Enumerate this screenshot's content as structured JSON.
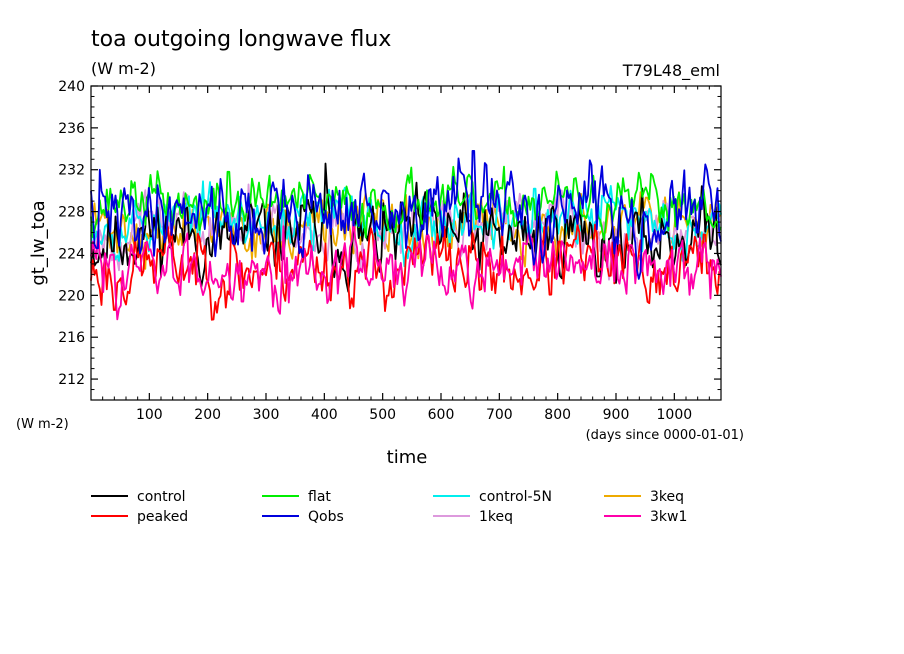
{
  "chart_data": {
    "type": "line",
    "title": "toa outgoing longwave flux",
    "subtitle": "(W m-2)",
    "run_label": "T79L48_eml",
    "ylabel": "gt_lw_toa",
    "yunit": "(W m-2)",
    "xlabel": "time",
    "xunit": "(days since 0000-01-01)",
    "xlim": [
      0,
      1080
    ],
    "ylim": [
      210,
      240
    ],
    "xticks": [
      100,
      200,
      300,
      400,
      500,
      600,
      700,
      800,
      900,
      1000
    ],
    "yticks": [
      212,
      216,
      220,
      224,
      228,
      232,
      236,
      240
    ],
    "grid": false,
    "legend_position": "bottom",
    "sample_step_days": 3,
    "series": [
      {
        "name": "control",
        "color": "#000000",
        "mean": 225.6,
        "amp": 1.7,
        "seed": 11,
        "max_point": [
          402,
          232.6
        ],
        "min_point": [
          868,
          221.8
        ]
      },
      {
        "name": "peaked",
        "color": "#ff0000",
        "mean": 222.8,
        "amp": 1.6,
        "seed": 23,
        "max_point": [
          240,
          226.4
        ],
        "min_point": [
          40,
          218.6
        ]
      },
      {
        "name": "flat",
        "color": "#00ee00",
        "mean": 228.8,
        "amp": 1.2,
        "seed": 37,
        "max_point": [
          235,
          231.8
        ],
        "min_point": [
          990,
          226.2
        ]
      },
      {
        "name": "Qobs",
        "color": "#0000dd",
        "mean": 228.0,
        "amp": 1.8,
        "seed": 41,
        "max_point": [
          655,
          233.8
        ],
        "min_point": [
          10,
          224.5
        ]
      },
      {
        "name": "control-5N",
        "color": "#00eeee",
        "mean": 227.2,
        "amp": 1.3,
        "seed": 53,
        "max_point": [
          760,
          230.2
        ],
        "min_point": [
          380,
          224.3
        ]
      },
      {
        "name": "1keq",
        "color": "#dd99dd",
        "mean": 226.6,
        "amp": 1.3,
        "seed": 67,
        "max_point": [
          270,
          230.6
        ],
        "min_point": [
          560,
          223.9
        ]
      },
      {
        "name": "3keq",
        "color": "#eeaa00",
        "mean": 226.4,
        "amp": 1.3,
        "seed": 71,
        "max_point": [
          540,
          229.6
        ],
        "min_point": [
          120,
          223.2
        ]
      },
      {
        "name": "3kw1",
        "color": "#ff00aa",
        "mean": 222.6,
        "amp": 1.5,
        "seed": 83,
        "max_point": [
          330,
          226.6
        ],
        "min_point": [
          260,
          219.4
        ]
      }
    ]
  }
}
